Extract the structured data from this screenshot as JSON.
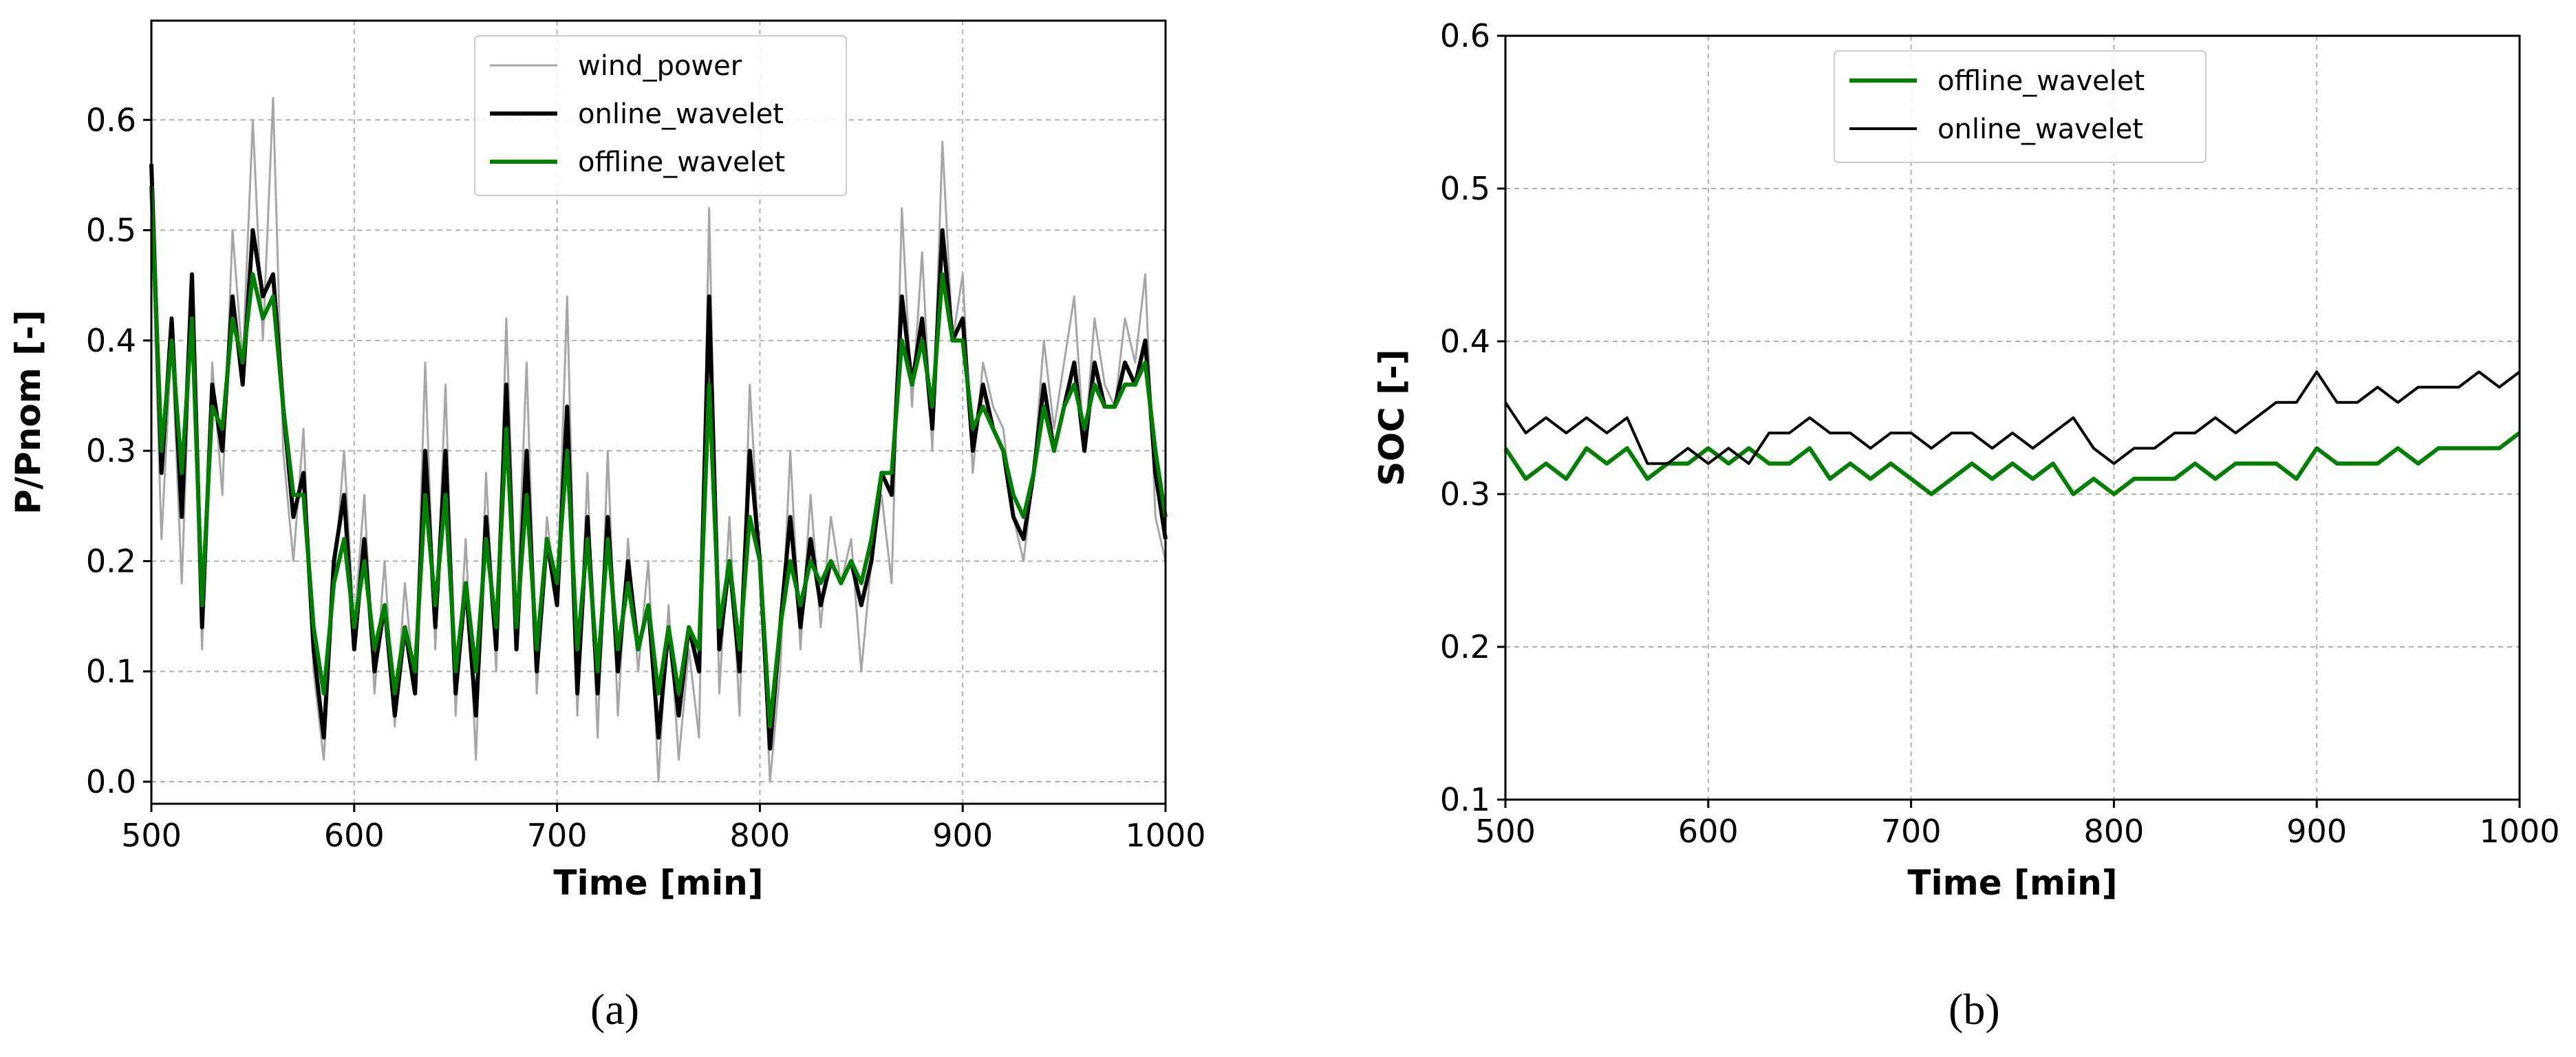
{
  "captions": {
    "a": "(a)",
    "b": "(b)"
  },
  "chart_data": [
    {
      "type": "line",
      "panel": "a",
      "xlabel": "Time [min]",
      "ylabel": "P/Pnom [-]",
      "xlim": [
        500,
        1000
      ],
      "ylim": [
        -0.02,
        0.69
      ],
      "xticks": [
        500,
        600,
        700,
        800,
        900,
        1000
      ],
      "yticks": [
        0.0,
        0.1,
        0.2,
        0.3,
        0.4,
        0.5,
        0.6
      ],
      "grid": true,
      "legend_position": "upper center",
      "x": [
        500,
        505,
        510,
        515,
        520,
        525,
        530,
        535,
        540,
        545,
        550,
        555,
        560,
        565,
        570,
        575,
        580,
        585,
        590,
        595,
        600,
        605,
        610,
        615,
        620,
        625,
        630,
        635,
        640,
        645,
        650,
        655,
        660,
        665,
        670,
        675,
        680,
        685,
        690,
        695,
        700,
        705,
        710,
        715,
        720,
        725,
        730,
        735,
        740,
        745,
        750,
        755,
        760,
        765,
        770,
        775,
        780,
        785,
        790,
        795,
        800,
        805,
        810,
        815,
        820,
        825,
        830,
        835,
        840,
        845,
        850,
        855,
        860,
        865,
        870,
        875,
        880,
        885,
        890,
        895,
        900,
        905,
        910,
        915,
        920,
        925,
        930,
        935,
        940,
        945,
        950,
        955,
        960,
        965,
        970,
        975,
        980,
        985,
        990,
        995,
        1000
      ],
      "series": [
        {
          "name": "wind_power",
          "color": "#a6a6a6",
          "values": [
            0.52,
            0.22,
            0.4,
            0.18,
            0.44,
            0.12,
            0.38,
            0.26,
            0.5,
            0.38,
            0.6,
            0.4,
            0.62,
            0.3,
            0.2,
            0.32,
            0.1,
            0.02,
            0.18,
            0.3,
            0.14,
            0.26,
            0.08,
            0.2,
            0.05,
            0.18,
            0.08,
            0.38,
            0.12,
            0.36,
            0.06,
            0.22,
            0.02,
            0.28,
            0.1,
            0.42,
            0.14,
            0.38,
            0.08,
            0.24,
            0.16,
            0.44,
            0.06,
            0.28,
            0.04,
            0.3,
            0.06,
            0.22,
            0.1,
            0.2,
            0.0,
            0.16,
            0.02,
            0.12,
            0.04,
            0.52,
            0.08,
            0.24,
            0.06,
            0.36,
            0.2,
            0.0,
            0.1,
            0.3,
            0.12,
            0.26,
            0.14,
            0.24,
            0.18,
            0.22,
            0.1,
            0.2,
            0.26,
            0.18,
            0.52,
            0.34,
            0.48,
            0.3,
            0.58,
            0.4,
            0.46,
            0.28,
            0.38,
            0.34,
            0.32,
            0.24,
            0.2,
            0.28,
            0.4,
            0.32,
            0.38,
            0.44,
            0.3,
            0.42,
            0.36,
            0.34,
            0.42,
            0.38,
            0.46,
            0.24,
            0.2
          ]
        },
        {
          "name": "online_wavelet",
          "color": "#000000",
          "values": [
            0.56,
            0.28,
            0.42,
            0.24,
            0.46,
            0.14,
            0.36,
            0.3,
            0.44,
            0.36,
            0.5,
            0.44,
            0.46,
            0.34,
            0.24,
            0.28,
            0.12,
            0.04,
            0.2,
            0.26,
            0.12,
            0.22,
            0.1,
            0.16,
            0.06,
            0.14,
            0.08,
            0.3,
            0.14,
            0.3,
            0.08,
            0.18,
            0.06,
            0.24,
            0.12,
            0.36,
            0.12,
            0.3,
            0.1,
            0.22,
            0.16,
            0.34,
            0.08,
            0.24,
            0.08,
            0.24,
            0.1,
            0.2,
            0.12,
            0.16,
            0.04,
            0.14,
            0.06,
            0.14,
            0.1,
            0.44,
            0.12,
            0.2,
            0.1,
            0.3,
            0.2,
            0.03,
            0.14,
            0.24,
            0.14,
            0.22,
            0.16,
            0.2,
            0.18,
            0.2,
            0.16,
            0.2,
            0.28,
            0.26,
            0.44,
            0.36,
            0.42,
            0.32,
            0.5,
            0.4,
            0.42,
            0.3,
            0.36,
            0.32,
            0.3,
            0.24,
            0.22,
            0.28,
            0.36,
            0.3,
            0.34,
            0.38,
            0.3,
            0.38,
            0.34,
            0.34,
            0.38,
            0.36,
            0.4,
            0.28,
            0.22
          ]
        },
        {
          "name": "offline_wavelet",
          "color": "#008000",
          "values": [
            0.54,
            0.3,
            0.4,
            0.28,
            0.42,
            0.16,
            0.34,
            0.32,
            0.42,
            0.38,
            0.46,
            0.42,
            0.44,
            0.34,
            0.26,
            0.26,
            0.14,
            0.08,
            0.18,
            0.22,
            0.14,
            0.2,
            0.12,
            0.16,
            0.08,
            0.14,
            0.1,
            0.26,
            0.16,
            0.26,
            0.1,
            0.18,
            0.1,
            0.22,
            0.14,
            0.32,
            0.14,
            0.26,
            0.12,
            0.22,
            0.18,
            0.3,
            0.12,
            0.22,
            0.1,
            0.22,
            0.12,
            0.18,
            0.12,
            0.16,
            0.08,
            0.14,
            0.08,
            0.14,
            0.12,
            0.36,
            0.14,
            0.2,
            0.12,
            0.24,
            0.2,
            0.05,
            0.14,
            0.2,
            0.16,
            0.2,
            0.18,
            0.2,
            0.18,
            0.2,
            0.18,
            0.22,
            0.28,
            0.28,
            0.4,
            0.36,
            0.4,
            0.34,
            0.46,
            0.4,
            0.4,
            0.32,
            0.34,
            0.32,
            0.3,
            0.26,
            0.24,
            0.28,
            0.34,
            0.3,
            0.34,
            0.36,
            0.32,
            0.36,
            0.34,
            0.34,
            0.36,
            0.36,
            0.38,
            0.3,
            0.24
          ]
        }
      ]
    },
    {
      "type": "line",
      "panel": "b",
      "xlabel": "Time [min]",
      "ylabel": "SOC [-]",
      "xlim": [
        500,
        1000
      ],
      "ylim": [
        0.1,
        0.6
      ],
      "xticks": [
        500,
        600,
        700,
        800,
        900,
        1000
      ],
      "yticks": [
        0.1,
        0.2,
        0.3,
        0.4,
        0.5,
        0.6
      ],
      "grid": true,
      "legend_position": "upper center",
      "x": [
        500,
        510,
        520,
        530,
        540,
        550,
        560,
        570,
        580,
        590,
        600,
        610,
        620,
        630,
        640,
        650,
        660,
        670,
        680,
        690,
        700,
        710,
        720,
        730,
        740,
        750,
        760,
        770,
        780,
        790,
        800,
        810,
        820,
        830,
        840,
        850,
        860,
        870,
        880,
        890,
        900,
        910,
        920,
        930,
        940,
        950,
        960,
        970,
        980,
        990,
        1000
      ],
      "series": [
        {
          "name": "offline_wavelet",
          "color": "#008000",
          "values": [
            0.33,
            0.31,
            0.32,
            0.31,
            0.33,
            0.32,
            0.33,
            0.31,
            0.32,
            0.32,
            0.33,
            0.32,
            0.33,
            0.32,
            0.32,
            0.33,
            0.31,
            0.32,
            0.31,
            0.32,
            0.31,
            0.3,
            0.31,
            0.32,
            0.31,
            0.32,
            0.31,
            0.32,
            0.3,
            0.31,
            0.3,
            0.31,
            0.31,
            0.31,
            0.32,
            0.31,
            0.32,
            0.32,
            0.32,
            0.31,
            0.33,
            0.32,
            0.32,
            0.32,
            0.33,
            0.32,
            0.33,
            0.33,
            0.33,
            0.33,
            0.34
          ]
        },
        {
          "name": "online_wavelet",
          "color": "#000000",
          "values": [
            0.36,
            0.34,
            0.35,
            0.34,
            0.35,
            0.34,
            0.35,
            0.32,
            0.32,
            0.33,
            0.32,
            0.33,
            0.32,
            0.34,
            0.34,
            0.35,
            0.34,
            0.34,
            0.33,
            0.34,
            0.34,
            0.33,
            0.34,
            0.34,
            0.33,
            0.34,
            0.33,
            0.34,
            0.35,
            0.33,
            0.32,
            0.33,
            0.33,
            0.34,
            0.34,
            0.35,
            0.34,
            0.35,
            0.36,
            0.36,
            0.38,
            0.36,
            0.36,
            0.37,
            0.36,
            0.37,
            0.37,
            0.37,
            0.38,
            0.37,
            0.38
          ]
        }
      ]
    }
  ]
}
